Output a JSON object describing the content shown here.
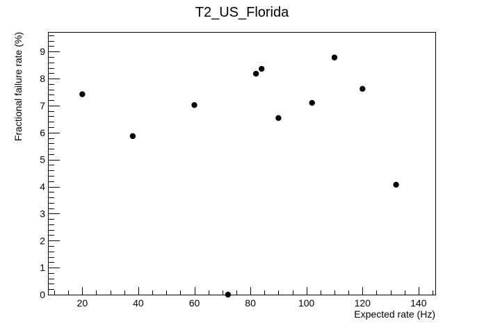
{
  "chart_data": {
    "type": "scatter",
    "title": "T2_US_Florida",
    "xlabel": "Expected rate (Hz)",
    "ylabel": "Fractional failure rate (%)",
    "xlim": [
      8,
      146
    ],
    "ylim": [
      0,
      9.7
    ],
    "x_ticks": [
      20,
      40,
      60,
      80,
      100,
      120,
      140
    ],
    "y_ticks": [
      0,
      1,
      2,
      3,
      4,
      5,
      6,
      7,
      8,
      9
    ],
    "grid": false,
    "legend": "none",
    "marker_color": "#000000",
    "points": [
      {
        "x": 20,
        "y": 7.42
      },
      {
        "x": 38,
        "y": 5.87
      },
      {
        "x": 60,
        "y": 7.02
      },
      {
        "x": 72,
        "y": 0.0
      },
      {
        "x": 82,
        "y": 8.18
      },
      {
        "x": 84,
        "y": 8.36
      },
      {
        "x": 90,
        "y": 6.54
      },
      {
        "x": 102,
        "y": 7.1
      },
      {
        "x": 110,
        "y": 8.78
      },
      {
        "x": 120,
        "y": 7.62
      },
      {
        "x": 132,
        "y": 4.07
      }
    ]
  }
}
